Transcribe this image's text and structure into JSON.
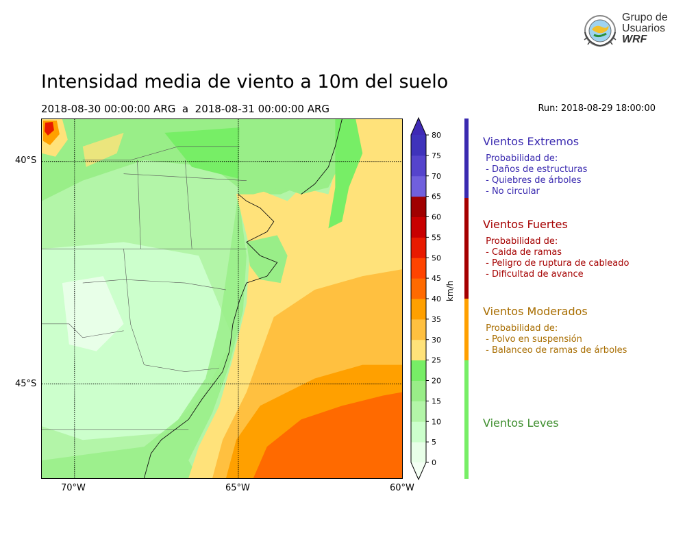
{
  "header": {
    "title": "Intensidad media de viento a 10m del suelo",
    "period": "2018-08-30 00:00:00 ARG  a  2018-08-31 00:00:00 ARG",
    "run": "Run: 2018-08-29 18:00:00"
  },
  "logo": {
    "line1": "Grupo de",
    "line2": "Usuarios",
    "line3": "WRF"
  },
  "map": {
    "lat_ticks": [
      "40°S",
      "45°S"
    ],
    "lon_ticks": [
      "70°W",
      "65°W",
      "60°W"
    ],
    "extent": {
      "lon_min": -71,
      "lon_max": -60,
      "lat_min": -47,
      "lat_max": -39.1
    }
  },
  "colorbar": {
    "unit": "km/h",
    "ticks": [
      "0",
      "5",
      "10",
      "15",
      "20",
      "25",
      "30",
      "35",
      "40",
      "45",
      "50",
      "55",
      "60",
      "65",
      "70",
      "75",
      "80"
    ],
    "colors": [
      "#e8ffe8",
      "#ccffcc",
      "#b3f5a8",
      "#99ee88",
      "#77ee66",
      "#ffe27a",
      "#ffc040",
      "#ffa000",
      "#ff6a00",
      "#ff4400",
      "#e81a00",
      "#c80000",
      "#a00000",
      "#7060dd",
      "#5544cc",
      "#3f33bb"
    ]
  },
  "legend": [
    {
      "title": "Vientos Extremos",
      "color": "#3a2ab0",
      "lines": [
        " Probabilidad de:",
        " - Daños de estructuras",
        " - Quiebres de árboles",
        " - No circular"
      ]
    },
    {
      "title": "Vientos Fuertes",
      "color": "#a50000",
      "lines": [
        " Probabilidad de:",
        " - Caida de ramas",
        " - Peligro de ruptura de cableado",
        " - Dificultad de avance"
      ]
    },
    {
      "title": "Vientos Moderados",
      "color": "#a86d00",
      "bar_color": "#ffa000",
      "lines": [
        " Probabilidad de:",
        " - Polvo en suspensión",
        " - Balanceo de ramas de árboles"
      ]
    },
    {
      "title": "Vientos Leves",
      "color": "#3e8e2e",
      "bar_color": "#77ee66",
      "lines": []
    }
  ]
}
